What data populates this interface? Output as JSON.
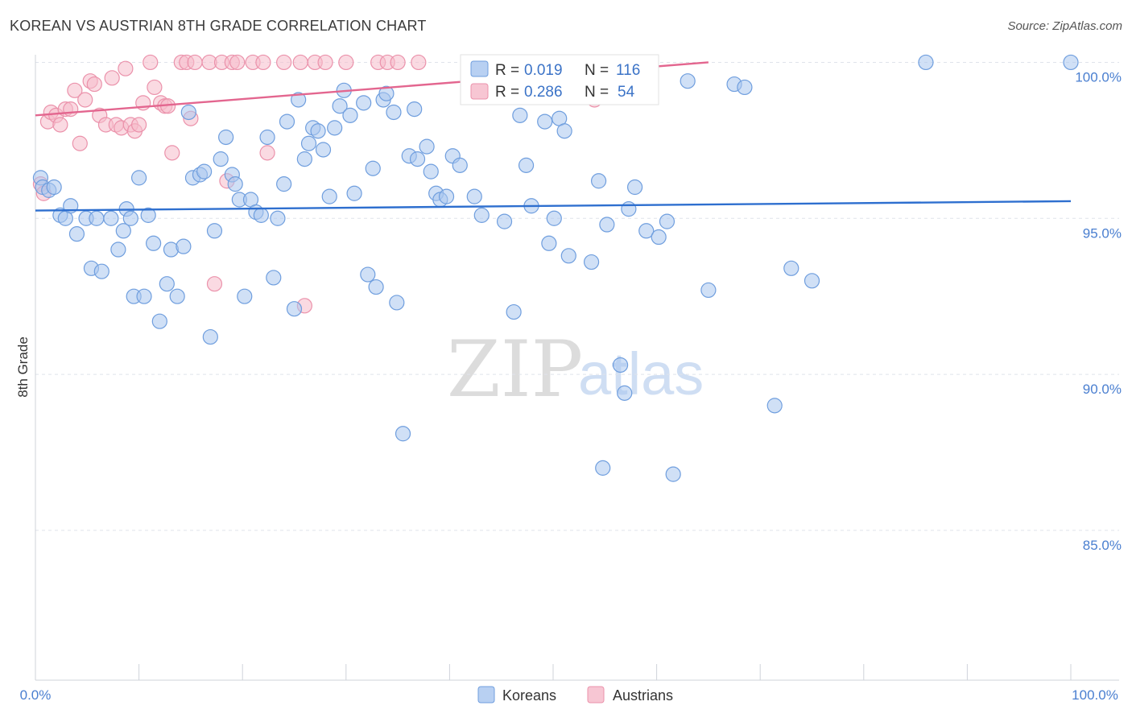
{
  "header": {
    "title": "KOREAN VS AUSTRIAN 8TH GRADE CORRELATION CHART",
    "source": "Source: ZipAtlas.com"
  },
  "watermark": {
    "zip": "ZIP",
    "atlas": "atlas"
  },
  "colors": {
    "koreans_fill": "#a9c6ef",
    "koreans_stroke": "#6f9ede",
    "koreans_line": "#2e6fcf",
    "austrians_fill": "#f6bccb",
    "austrians_stroke": "#eb92ab",
    "austrians_line": "#e3668f",
    "grid": "#dfe3ea",
    "axis_label": "#4a7fd0"
  },
  "stats": {
    "koreans": {
      "r_label": "R =",
      "r_value": "0.019",
      "n_label": "N =",
      "n_value": "116"
    },
    "austrians": {
      "r_label": "R =",
      "r_value": "0.286",
      "n_label": "N =",
      "n_value": "54"
    }
  },
  "chart_data": {
    "type": "scatter",
    "title": "KOREAN VS AUSTRIAN 8TH GRADE CORRELATION CHART",
    "xlabel": "",
    "ylabel": "8th Grade",
    "xlim": [
      0,
      100
    ],
    "ylim": [
      80.2,
      100.45
    ],
    "x_tick_labels": [
      "0.0%",
      "100.0%"
    ],
    "y_ticks": [
      85,
      90,
      95,
      100
    ],
    "y_tick_labels": [
      "85.0%",
      "90.0%",
      "95.0%",
      "100.0%"
    ],
    "legend_position": "bottom-center",
    "series": [
      {
        "name": "Koreans",
        "r": 0.019,
        "n": 116,
        "trend": {
          "x": [
            0,
            100
          ],
          "y": [
            95.25,
            95.55
          ]
        },
        "points": [
          [
            0.5,
            96.3
          ],
          [
            0.7,
            96.0
          ],
          [
            1.3,
            95.9
          ],
          [
            1.8,
            96.0
          ],
          [
            2.4,
            95.1
          ],
          [
            2.9,
            95.0
          ],
          [
            3.4,
            95.4
          ],
          [
            4.0,
            94.5
          ],
          [
            4.9,
            95.0
          ],
          [
            5.4,
            93.4
          ],
          [
            5.9,
            95.0
          ],
          [
            6.4,
            93.3
          ],
          [
            7.3,
            95.0
          ],
          [
            8.0,
            94.0
          ],
          [
            8.5,
            94.6
          ],
          [
            8.8,
            95.3
          ],
          [
            9.2,
            95.0
          ],
          [
            9.5,
            92.5
          ],
          [
            10.0,
            96.3
          ],
          [
            10.5,
            92.5
          ],
          [
            10.9,
            95.1
          ],
          [
            11.4,
            94.2
          ],
          [
            12.0,
            91.7
          ],
          [
            12.7,
            92.9
          ],
          [
            13.1,
            94.0
          ],
          [
            13.7,
            92.5
          ],
          [
            14.3,
            94.1
          ],
          [
            14.8,
            98.4
          ],
          [
            15.2,
            96.3
          ],
          [
            15.9,
            96.4
          ],
          [
            16.3,
            96.5
          ],
          [
            16.9,
            91.2
          ],
          [
            17.3,
            94.6
          ],
          [
            17.9,
            96.9
          ],
          [
            18.4,
            97.6
          ],
          [
            19.0,
            96.4
          ],
          [
            19.3,
            96.1
          ],
          [
            19.7,
            95.6
          ],
          [
            20.2,
            92.5
          ],
          [
            20.8,
            95.6
          ],
          [
            21.3,
            95.2
          ],
          [
            21.8,
            95.1
          ],
          [
            22.4,
            97.6
          ],
          [
            23.0,
            93.1
          ],
          [
            23.4,
            95.0
          ],
          [
            24.0,
            96.1
          ],
          [
            24.3,
            98.1
          ],
          [
            25.0,
            92.1
          ],
          [
            25.4,
            98.8
          ],
          [
            26.0,
            96.9
          ],
          [
            26.4,
            97.4
          ],
          [
            26.8,
            97.9
          ],
          [
            27.3,
            97.8
          ],
          [
            27.8,
            97.2
          ],
          [
            28.4,
            95.7
          ],
          [
            28.9,
            97.9
          ],
          [
            29.4,
            98.6
          ],
          [
            29.8,
            99.1
          ],
          [
            30.4,
            98.3
          ],
          [
            30.8,
            95.8
          ],
          [
            31.7,
            98.7
          ],
          [
            32.1,
            93.2
          ],
          [
            32.6,
            96.6
          ],
          [
            32.9,
            92.8
          ],
          [
            33.6,
            98.8
          ],
          [
            33.9,
            99.0
          ],
          [
            34.6,
            98.4
          ],
          [
            34.9,
            92.3
          ],
          [
            35.5,
            88.1
          ],
          [
            36.1,
            97.0
          ],
          [
            36.6,
            98.5
          ],
          [
            36.9,
            96.9
          ],
          [
            37.8,
            97.3
          ],
          [
            38.2,
            96.5
          ],
          [
            38.7,
            95.8
          ],
          [
            39.1,
            95.6
          ],
          [
            39.7,
            95.7
          ],
          [
            40.3,
            97.0
          ],
          [
            41.0,
            96.7
          ],
          [
            42.4,
            95.7
          ],
          [
            43.1,
            95.1
          ],
          [
            45.3,
            94.9
          ],
          [
            46.2,
            92.0
          ],
          [
            46.8,
            98.3
          ],
          [
            47.4,
            96.7
          ],
          [
            47.9,
            95.4
          ],
          [
            49.2,
            98.1
          ],
          [
            49.6,
            94.2
          ],
          [
            50.1,
            95.0
          ],
          [
            50.6,
            98.2
          ],
          [
            51.1,
            97.8
          ],
          [
            51.5,
            93.8
          ],
          [
            52.7,
            99.3
          ],
          [
            53.7,
            93.6
          ],
          [
            54.4,
            96.2
          ],
          [
            54.8,
            87.0
          ],
          [
            55.2,
            94.8
          ],
          [
            56.5,
            90.3
          ],
          [
            56.9,
            89.4
          ],
          [
            57.3,
            95.3
          ],
          [
            57.9,
            96.0
          ],
          [
            59.0,
            94.6
          ],
          [
            60.2,
            94.4
          ],
          [
            61.0,
            94.9
          ],
          [
            61.6,
            86.8
          ],
          [
            63.0,
            99.4
          ],
          [
            65.0,
            92.7
          ],
          [
            67.5,
            99.3
          ],
          [
            68.5,
            99.2
          ],
          [
            71.4,
            89.0
          ],
          [
            73.0,
            93.4
          ],
          [
            75.0,
            93.0
          ],
          [
            86.0,
            100.0
          ],
          [
            100.0,
            100.0
          ]
        ]
      },
      {
        "name": "Austrians",
        "r": 0.286,
        "n": 54,
        "trend": {
          "x": [
            0,
            65
          ],
          "y": [
            98.3,
            100.0
          ]
        },
        "points": [
          [
            0.5,
            96.1
          ],
          [
            0.8,
            95.8
          ],
          [
            1.2,
            98.1
          ],
          [
            1.5,
            98.4
          ],
          [
            2.0,
            98.3
          ],
          [
            2.4,
            98.0
          ],
          [
            2.9,
            98.5
          ],
          [
            3.4,
            98.5
          ],
          [
            3.8,
            99.1
          ],
          [
            4.3,
            97.4
          ],
          [
            4.8,
            98.8
          ],
          [
            5.3,
            99.4
          ],
          [
            5.7,
            99.3
          ],
          [
            6.2,
            98.3
          ],
          [
            6.8,
            98.0
          ],
          [
            7.4,
            99.5
          ],
          [
            7.8,
            98.0
          ],
          [
            8.3,
            97.9
          ],
          [
            8.7,
            99.8
          ],
          [
            9.2,
            98.0
          ],
          [
            9.6,
            97.8
          ],
          [
            10.0,
            98.0
          ],
          [
            10.4,
            98.7
          ],
          [
            11.1,
            100.0
          ],
          [
            11.5,
            99.2
          ],
          [
            12.1,
            98.7
          ],
          [
            12.5,
            98.6
          ],
          [
            12.8,
            98.6
          ],
          [
            13.2,
            97.1
          ],
          [
            14.1,
            100.0
          ],
          [
            14.6,
            100.0
          ],
          [
            15.0,
            98.2
          ],
          [
            15.4,
            100.0
          ],
          [
            16.8,
            100.0
          ],
          [
            17.3,
            92.9
          ],
          [
            18.0,
            100.0
          ],
          [
            18.5,
            96.2
          ],
          [
            19.0,
            100.0
          ],
          [
            19.5,
            100.0
          ],
          [
            21.0,
            100.0
          ],
          [
            22.0,
            100.0
          ],
          [
            22.4,
            97.1
          ],
          [
            24.0,
            100.0
          ],
          [
            25.6,
            100.0
          ],
          [
            26.0,
            92.2
          ],
          [
            27.0,
            100.0
          ],
          [
            28.0,
            100.0
          ],
          [
            30.0,
            100.0
          ],
          [
            33.1,
            100.0
          ],
          [
            34.0,
            100.0
          ],
          [
            35.0,
            100.0
          ],
          [
            37.0,
            100.0
          ],
          [
            44.0,
            100.0
          ],
          [
            54.0,
            98.8
          ]
        ]
      }
    ]
  },
  "legend": {
    "koreans_label": "Koreans",
    "austrians_label": "Austrians"
  }
}
